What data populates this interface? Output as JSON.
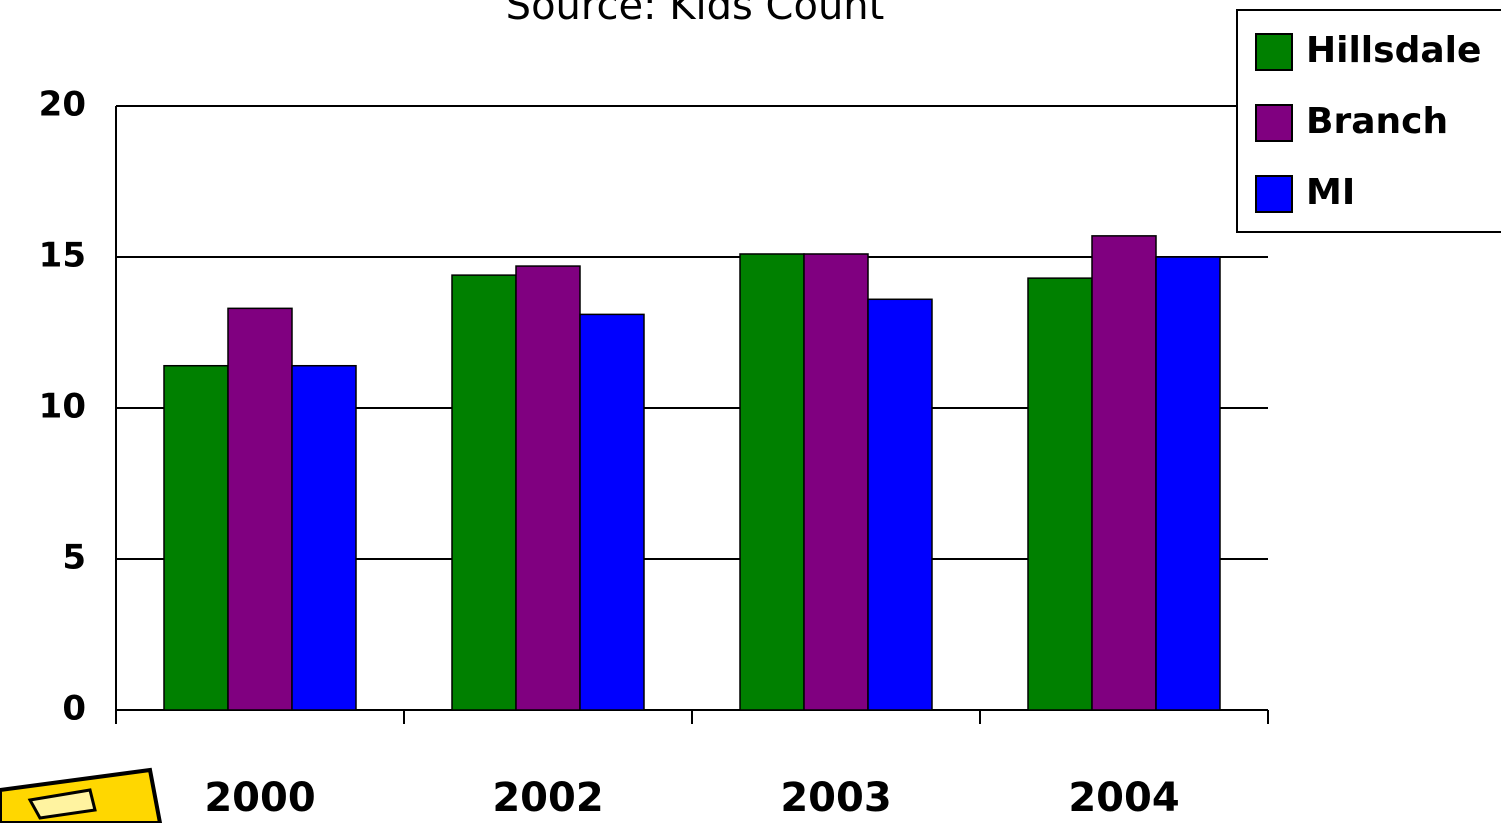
{
  "chart_data": {
    "type": "bar",
    "title": "Source: Kids Count",
    "categories": [
      "2000",
      "2002",
      "2003",
      "2004"
    ],
    "series": [
      {
        "name": "Hillsdale",
        "color": "#008000",
        "values": [
          11.4,
          14.4,
          15.1,
          14.3
        ]
      },
      {
        "name": "Branch",
        "color": "#800080",
        "values": [
          13.3,
          14.7,
          15.1,
          15.7
        ]
      },
      {
        "name": "MI",
        "color": "#0000ff",
        "values": [
          11.4,
          13.1,
          13.6,
          15.0
        ]
      }
    ],
    "ylim": [
      0,
      20
    ],
    "yticks": [
      0,
      5,
      10,
      15,
      20
    ],
    "grid": true,
    "legend": "top-right"
  }
}
